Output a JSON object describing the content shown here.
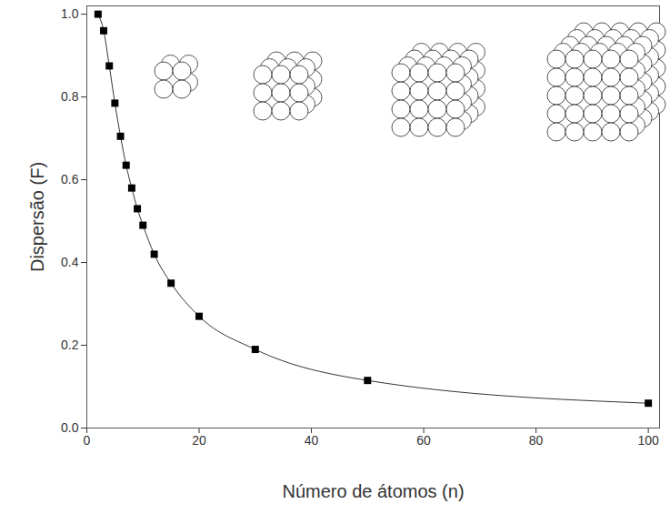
{
  "chart_data": {
    "type": "line",
    "xlabel": "Número de átomos (n)",
    "ylabel": "Dispersão (F)",
    "x": [
      2,
      3,
      4,
      5,
      6,
      7,
      8,
      9,
      10,
      12,
      15,
      20,
      30,
      50,
      100
    ],
    "values": [
      1.0,
      0.96,
      0.875,
      0.785,
      0.705,
      0.635,
      0.58,
      0.53,
      0.49,
      0.42,
      0.35,
      0.27,
      0.19,
      0.115,
      0.06
    ],
    "color": "#000000",
    "marker": "square",
    "xlim": [
      0,
      102
    ],
    "ylim": [
      0,
      1.02
    ],
    "xticks": [
      0,
      20,
      40,
      60,
      80,
      100
    ],
    "yticks": [
      {
        "value": 0,
        "label": "0.0"
      },
      0.2,
      0.4,
      0.6,
      0.8,
      {
        "value": 1,
        "label": "1.0"
      }
    ],
    "grid": false
  }
}
